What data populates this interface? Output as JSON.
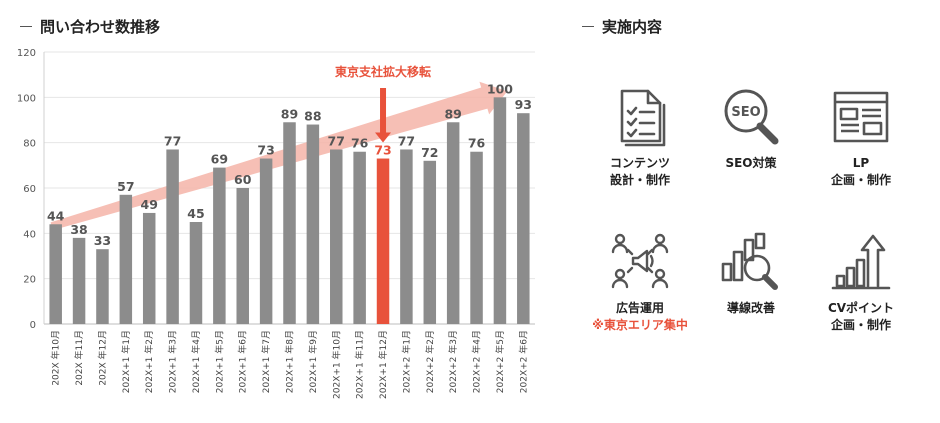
{
  "chart_title": "問い合わせ数推移",
  "measures_title": "実施内容",
  "chart_data": {
    "type": "bar",
    "categories": [
      "202X 年10月",
      "202X 年11月",
      "202X 年12月",
      "202X+1 年1月",
      "202X+1 年2月",
      "202X+1 年3月",
      "202X+1 年4月",
      "202X+1 年5月",
      "202X+1 年6月",
      "202X+1 年7月",
      "202X+1 年8月",
      "202X+1 年9月",
      "202X+1 年10月",
      "202X+1 年11月",
      "202X+1 年12月",
      "202X+2 年1月",
      "202X+2 年2月",
      "202X+2 年3月",
      "202X+2 年4月",
      "202X+2 年5月",
      "202X+2 年6月"
    ],
    "values": [
      44,
      38,
      33,
      57,
      49,
      77,
      45,
      69,
      60,
      73,
      89,
      88,
      77,
      76,
      73,
      77,
      72,
      89,
      76,
      100,
      93
    ],
    "ylim": [
      0,
      120
    ],
    "yticks": [
      0,
      20,
      40,
      60,
      80,
      100,
      120
    ],
    "grid": true,
    "bar_color": "#8c8c8c",
    "highlight_color": "#e8523b",
    "trend_color": "#f4b4a8",
    "highlight_index": 14,
    "annotation": "東京支社拡大移転"
  },
  "measures": [
    {
      "icon": "document-checklist-icon",
      "lines": [
        "コンテンツ",
        "設計・制作"
      ],
      "note": ""
    },
    {
      "icon": "seo-magnifier-icon",
      "lines": [
        "SEO対策"
      ],
      "note": ""
    },
    {
      "icon": "landing-page-icon",
      "lines": [
        "LP",
        "企画・制作"
      ],
      "note": ""
    },
    {
      "icon": "megaphone-people-icon",
      "lines": [
        "広告運用"
      ],
      "note": "※東京エリア集中"
    },
    {
      "icon": "bar-chart-magnifier-icon",
      "lines": [
        "導線改善"
      ],
      "note": ""
    },
    {
      "icon": "growth-arrow-icon",
      "lines": [
        "CVポイント",
        "企画・制作"
      ],
      "note": ""
    }
  ]
}
